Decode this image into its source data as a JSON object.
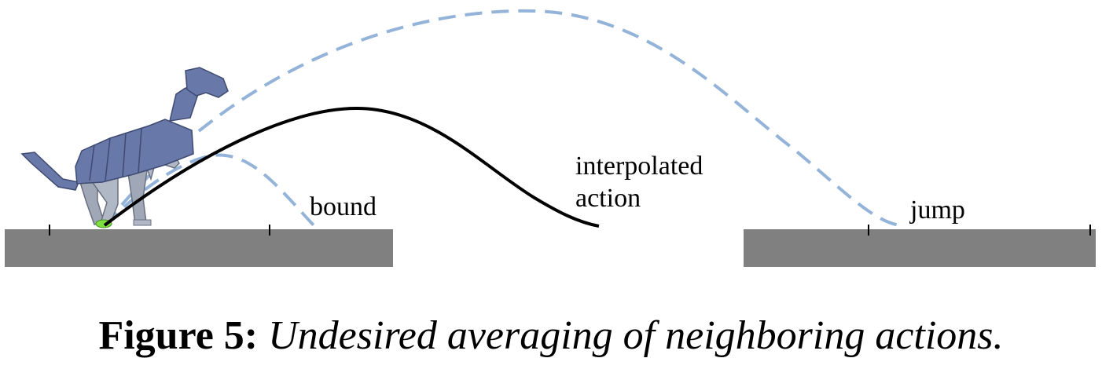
{
  "diagram": {
    "labels": {
      "bound": "bound",
      "interpolated_line1": "interpolated",
      "interpolated_line2": "action",
      "jump": "jump"
    },
    "colors": {
      "ground": "#808080",
      "dashed_trajectory": "#93b3d9",
      "interpolated_trajectory": "#000000",
      "robot_body": "#6878a8",
      "robot_legs": "#a0a8b8",
      "foot_contact": "#7de040"
    }
  },
  "caption": {
    "label": "Figure 5:",
    "text": "Undesired averaging of neighboring actions."
  }
}
